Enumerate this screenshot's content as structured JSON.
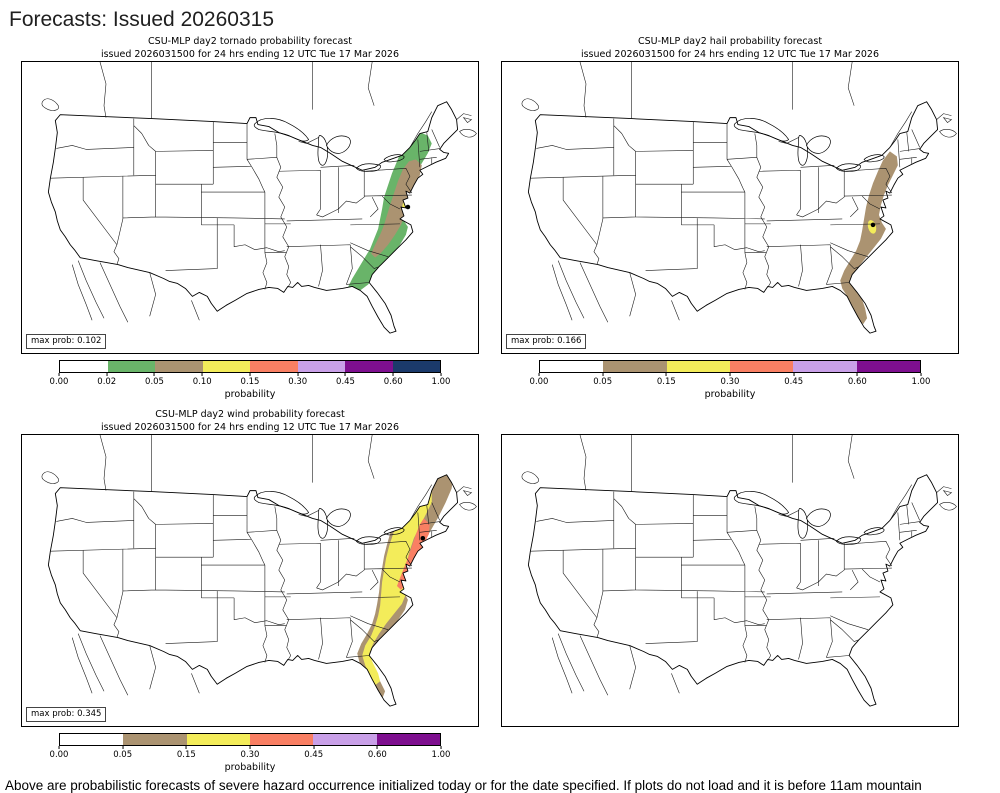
{
  "page": {
    "title": "Forecasts: Issued 20260315",
    "footer_text": "Above are probabilistic forecasts of severe hazard occurrence initialized today or for the date specified. If plots do not load and it is before 11am mountain"
  },
  "colors": {
    "white": "#ffffff",
    "green": "#69b469",
    "brown": "#ab9371",
    "yellow": "#f3ec5a",
    "salmon": "#f97f63",
    "light_purple": "#c9a0e8",
    "dark_purple": "#7e0f8f",
    "navy": "#1b3a6b",
    "marker_black": "#000000"
  },
  "panels": [
    {
      "key": "tornado",
      "title": "CSU-MLP day2 tornado probability forecast",
      "subtitle": "issued 2026031500 for 24 hrs ending 12 UTC Tue 17 Mar 2026",
      "max_prob": "max prob: 0.102",
      "colorbar": {
        "label": "probability",
        "ticks": [
          "0.00",
          "0.02",
          "0.05",
          "0.10",
          "0.15",
          "0.30",
          "0.45",
          "0.60",
          "1.00"
        ],
        "segment_colors": [
          "#ffffff",
          "#69b469",
          "#ab9371",
          "#f3ec5a",
          "#f97f63",
          "#c9a0e8",
          "#7e0f8f",
          "#1b3a6b"
        ]
      }
    },
    {
      "key": "hail",
      "title": "CSU-MLP day2 hail probability forecast",
      "subtitle": "issued 2026031500 for 24 hrs ending 12 UTC Tue 17 Mar 2026",
      "max_prob": "max prob: 0.166",
      "colorbar": {
        "label": "probability",
        "ticks": [
          "0.00",
          "0.05",
          "0.15",
          "0.30",
          "0.45",
          "0.60",
          "1.00"
        ],
        "segment_colors": [
          "#ffffff",
          "#ab9371",
          "#f3ec5a",
          "#f97f63",
          "#c9a0e8",
          "#7e0f8f"
        ]
      }
    },
    {
      "key": "wind",
      "title": "CSU-MLP day2 wind probability forecast",
      "subtitle": "issued 2026031500 for 24 hrs ending 12 UTC Tue 17 Mar 2026",
      "max_prob": "max prob: 0.345",
      "colorbar": {
        "label": "probability",
        "ticks": [
          "0.00",
          "0.05",
          "0.15",
          "0.30",
          "0.45",
          "0.60",
          "1.00"
        ],
        "segment_colors": [
          "#ffffff",
          "#ab9371",
          "#f3ec5a",
          "#f97f63",
          "#c9a0e8",
          "#7e0f8f"
        ]
      }
    },
    {
      "key": "empty",
      "title": "",
      "subtitle": "",
      "max_prob": ""
    }
  ]
}
